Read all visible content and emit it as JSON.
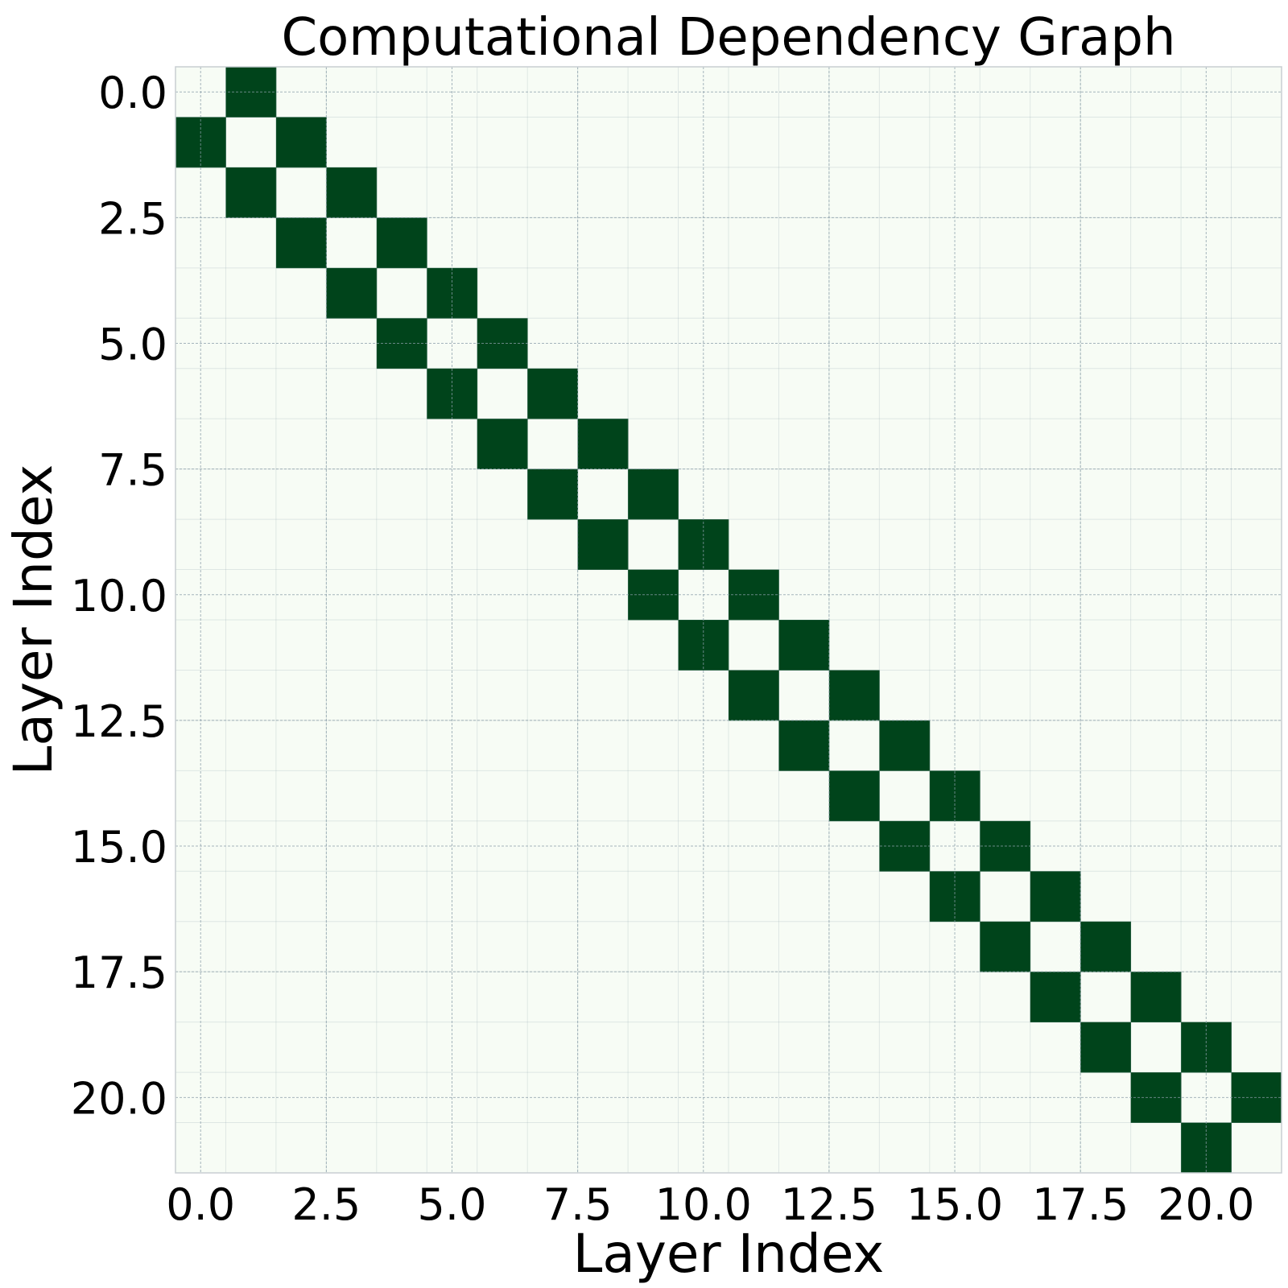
{
  "chart_data": {
    "type": "heatmap",
    "title": "Computational Dependency Graph",
    "xlabel": "Layer Index",
    "ylabel": "Layer Index",
    "n": 22,
    "xlim": [
      -0.5,
      21.5
    ],
    "ylim": [
      21.5,
      -0.5
    ],
    "x_ticks": [
      0.0,
      2.5,
      5.0,
      7.5,
      10.0,
      12.5,
      15.0,
      17.5,
      20.0
    ],
    "x_tick_labels": [
      "0.0",
      "2.5",
      "5.0",
      "7.5",
      "10.0",
      "12.5",
      "15.0",
      "17.5",
      "20.0"
    ],
    "y_ticks": [
      0.0,
      2.5,
      5.0,
      7.5,
      10.0,
      12.5,
      15.0,
      17.5,
      20.0
    ],
    "y_tick_labels": [
      "0.0",
      "2.5",
      "5.0",
      "7.5",
      "10.0",
      "12.5",
      "15.0",
      "17.5",
      "20.0"
    ],
    "grid": true,
    "colors": {
      "low": "#f7fcf5",
      "high": "#00441b",
      "grid": "#8a9ea8"
    },
    "matrix": [
      [
        0,
        1,
        0,
        0,
        0,
        0,
        0,
        0,
        0,
        0,
        0,
        0,
        0,
        0,
        0,
        0,
        0,
        0,
        0,
        0,
        0,
        0
      ],
      [
        1,
        0,
        1,
        0,
        0,
        0,
        0,
        0,
        0,
        0,
        0,
        0,
        0,
        0,
        0,
        0,
        0,
        0,
        0,
        0,
        0,
        0
      ],
      [
        0,
        1,
        0,
        1,
        0,
        0,
        0,
        0,
        0,
        0,
        0,
        0,
        0,
        0,
        0,
        0,
        0,
        0,
        0,
        0,
        0,
        0
      ],
      [
        0,
        0,
        1,
        0,
        1,
        0,
        0,
        0,
        0,
        0,
        0,
        0,
        0,
        0,
        0,
        0,
        0,
        0,
        0,
        0,
        0,
        0
      ],
      [
        0,
        0,
        0,
        1,
        0,
        1,
        0,
        0,
        0,
        0,
        0,
        0,
        0,
        0,
        0,
        0,
        0,
        0,
        0,
        0,
        0,
        0
      ],
      [
        0,
        0,
        0,
        0,
        1,
        0,
        1,
        0,
        0,
        0,
        0,
        0,
        0,
        0,
        0,
        0,
        0,
        0,
        0,
        0,
        0,
        0
      ],
      [
        0,
        0,
        0,
        0,
        0,
        1,
        0,
        1,
        0,
        0,
        0,
        0,
        0,
        0,
        0,
        0,
        0,
        0,
        0,
        0,
        0,
        0
      ],
      [
        0,
        0,
        0,
        0,
        0,
        0,
        1,
        0,
        1,
        0,
        0,
        0,
        0,
        0,
        0,
        0,
        0,
        0,
        0,
        0,
        0,
        0
      ],
      [
        0,
        0,
        0,
        0,
        0,
        0,
        0,
        1,
        0,
        1,
        0,
        0,
        0,
        0,
        0,
        0,
        0,
        0,
        0,
        0,
        0,
        0
      ],
      [
        0,
        0,
        0,
        0,
        0,
        0,
        0,
        0,
        1,
        0,
        1,
        0,
        0,
        0,
        0,
        0,
        0,
        0,
        0,
        0,
        0,
        0
      ],
      [
        0,
        0,
        0,
        0,
        0,
        0,
        0,
        0,
        0,
        1,
        0,
        1,
        0,
        0,
        0,
        0,
        0,
        0,
        0,
        0,
        0,
        0
      ],
      [
        0,
        0,
        0,
        0,
        0,
        0,
        0,
        0,
        0,
        0,
        1,
        0,
        1,
        0,
        0,
        0,
        0,
        0,
        0,
        0,
        0,
        0
      ],
      [
        0,
        0,
        0,
        0,
        0,
        0,
        0,
        0,
        0,
        0,
        0,
        1,
        0,
        1,
        0,
        0,
        0,
        0,
        0,
        0,
        0,
        0
      ],
      [
        0,
        0,
        0,
        0,
        0,
        0,
        0,
        0,
        0,
        0,
        0,
        0,
        1,
        0,
        1,
        0,
        0,
        0,
        0,
        0,
        0,
        0
      ],
      [
        0,
        0,
        0,
        0,
        0,
        0,
        0,
        0,
        0,
        0,
        0,
        0,
        0,
        1,
        0,
        1,
        0,
        0,
        0,
        0,
        0,
        0
      ],
      [
        0,
        0,
        0,
        0,
        0,
        0,
        0,
        0,
        0,
        0,
        0,
        0,
        0,
        0,
        1,
        0,
        1,
        0,
        0,
        0,
        0,
        0
      ],
      [
        0,
        0,
        0,
        0,
        0,
        0,
        0,
        0,
        0,
        0,
        0,
        0,
        0,
        0,
        0,
        1,
        0,
        1,
        0,
        0,
        0,
        0
      ],
      [
        0,
        0,
        0,
        0,
        0,
        0,
        0,
        0,
        0,
        0,
        0,
        0,
        0,
        0,
        0,
        0,
        1,
        0,
        1,
        0,
        0,
        0
      ],
      [
        0,
        0,
        0,
        0,
        0,
        0,
        0,
        0,
        0,
        0,
        0,
        0,
        0,
        0,
        0,
        0,
        0,
        1,
        0,
        1,
        0,
        0
      ],
      [
        0,
        0,
        0,
        0,
        0,
        0,
        0,
        0,
        0,
        0,
        0,
        0,
        0,
        0,
        0,
        0,
        0,
        0,
        1,
        0,
        1,
        0
      ],
      [
        0,
        0,
        0,
        0,
        0,
        0,
        0,
        0,
        0,
        0,
        0,
        0,
        0,
        0,
        0,
        0,
        0,
        0,
        0,
        1,
        0,
        1
      ],
      [
        0,
        0,
        0,
        0,
        0,
        0,
        0,
        0,
        0,
        0,
        0,
        0,
        0,
        0,
        0,
        0,
        0,
        0,
        0,
        0,
        1,
        0
      ]
    ]
  }
}
